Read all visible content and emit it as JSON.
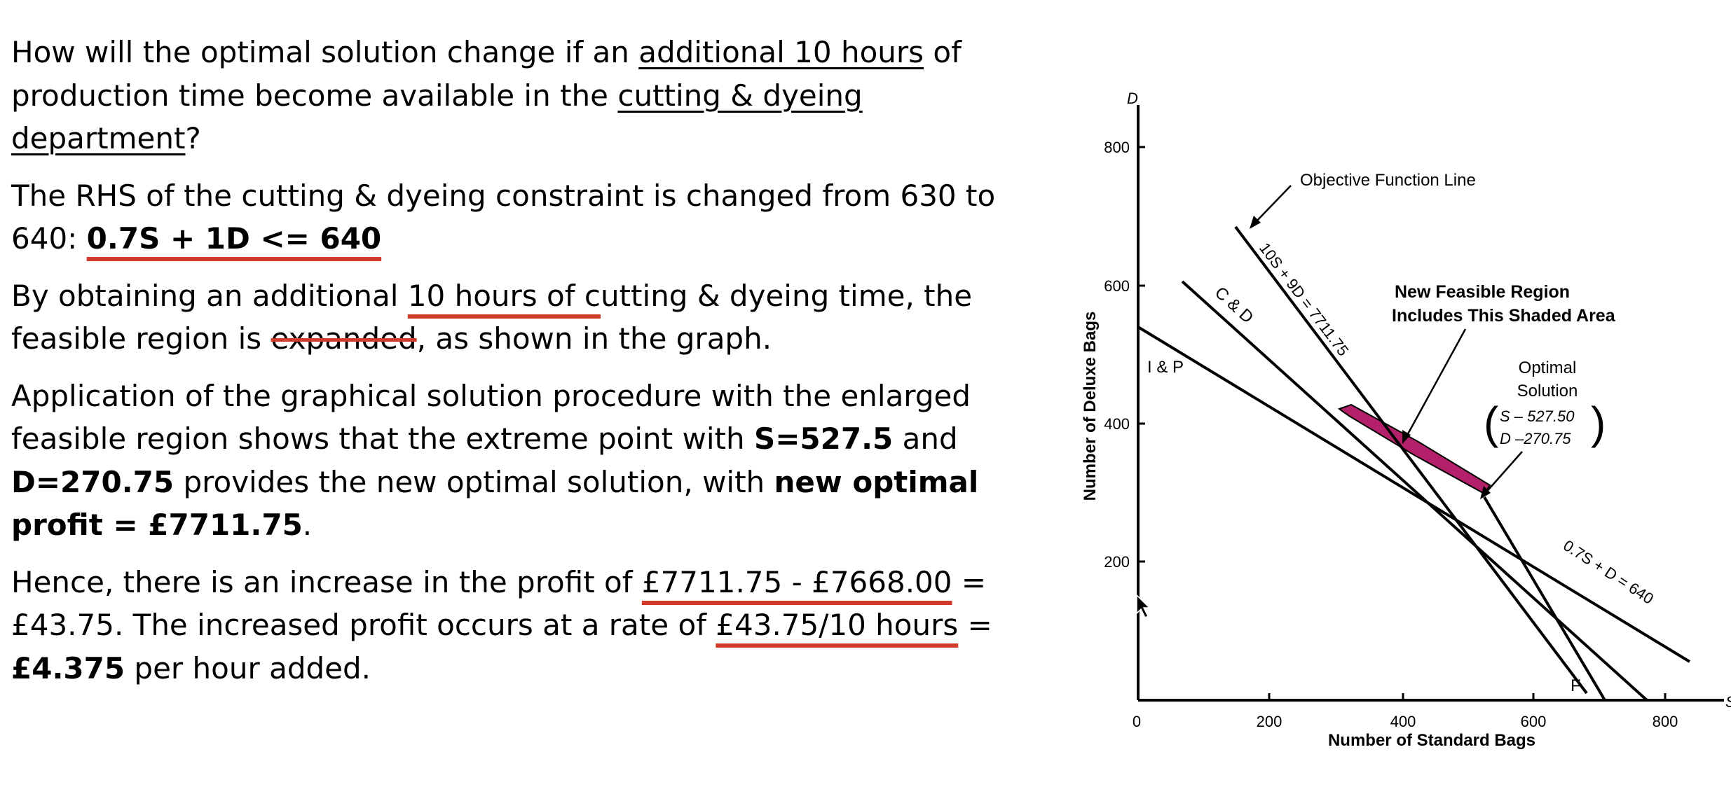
{
  "text": {
    "p1": {
      "l1a": "How will the optimal solution change if an ",
      "l1b": "additional 10 hours",
      "l1c": " of",
      "l2a": "production time become available in the ",
      "l2b": "cutting & dyeing",
      "l3a": "department",
      "l3b": "?"
    },
    "p2": {
      "l1": "The RHS of the cutting & dyeing constraint is changed from 630 to",
      "l2a": "640: ",
      "l2b": "0.7S + 1D <= 640"
    },
    "p3": {
      "l1a": "By obtaining an additional ",
      "l1b": "10 hours of c",
      "l1c": "utting & dyeing time, the",
      "l2a": "feasible region is ",
      "l2b": "expanded",
      "l2c": ", as shown in the graph."
    },
    "p4": {
      "l1": "Application of the graphical solution procedure with the enlarged",
      "l2a": "feasible region shows that the extreme point with ",
      "l2b": "S=527.5",
      "l2c": " and",
      "l3a": "D=270.75",
      "l3b": " provides the new optimal solution, with ",
      "l3c": "new optimal",
      "l4a": "profit = £7711.75",
      "l4b": "."
    },
    "p5": {
      "l1a": "Hence, there is an increase in the profit of ",
      "l1b": "£7711.75 - £7668.00",
      "l1c": " =",
      "l2a": "£43.75. The increased profit occurs at a rate of ",
      "l2b": "£43.75/10 hours",
      "l2c": " =",
      "l3a": "£4.375",
      "l3b": " per hour added."
    }
  },
  "graph": {
    "x_axis_var": "S",
    "y_axis_var": "D",
    "xlabel": "Number of Standard Bags",
    "ylabel": "Number of Deluxe Bags",
    "x_ticks": [
      {
        "value": 0,
        "label": "0"
      },
      {
        "value": 200,
        "label": "200"
      },
      {
        "value": 400,
        "label": "400"
      },
      {
        "value": 600,
        "label": "600"
      },
      {
        "value": 800,
        "label": "800"
      }
    ],
    "y_ticks": [
      {
        "value": 200,
        "label": "200"
      },
      {
        "value": 400,
        "label": "400"
      },
      {
        "value": 600,
        "label": "600"
      },
      {
        "value": 800,
        "label": "800"
      }
    ],
    "labels": {
      "ip": "I & P",
      "cd": "C & D",
      "objective_eq": "10S + 9D = 7711.75",
      "cd_eq": "0.7S + D = 640",
      "f": "F",
      "objective_callout": "Objective Function Line",
      "region_callout_1": "New Feasible Region",
      "region_callout_2": "Includes This Shaded Area",
      "optimal_1": "Optimal",
      "optimal_2": "Solution",
      "optimal_s": "S – 527.50",
      "optimal_d": "D –270.75"
    },
    "shade_color": "#b5206a",
    "accent_red": "#d13b2c"
  }
}
